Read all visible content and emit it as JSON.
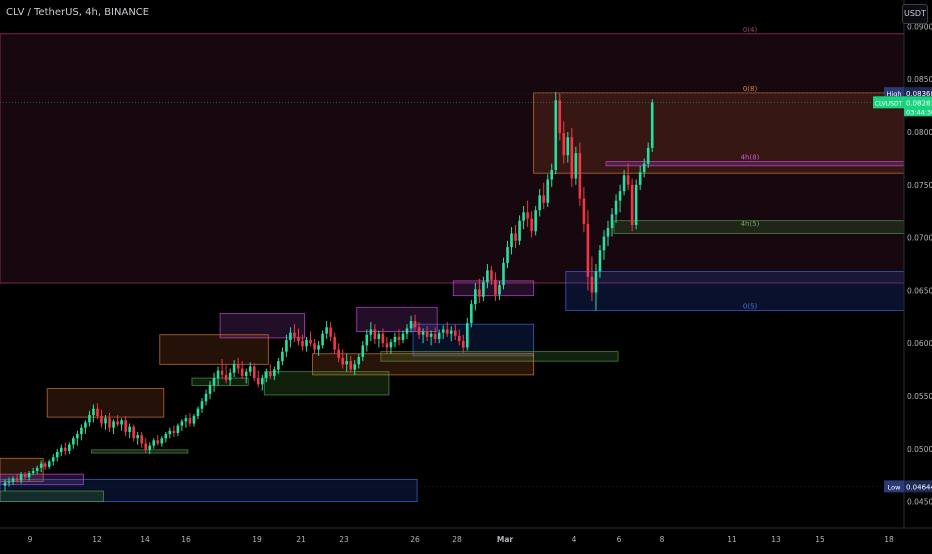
{
  "header": {
    "symbol_title": "CLV / TetherUS, 4h, BINANCE"
  },
  "price_scale": {
    "currency": "USDT"
  },
  "colors": {
    "up": "#26e0a0",
    "down": "#f23645",
    "background": "#000000",
    "last_price": "#19d47e"
  },
  "chart_data": {
    "type": "candlestick",
    "title": "CLV / TetherUS, 4h, BINANCE",
    "x_ticks": [
      "9",
      "12",
      "14",
      "16",
      "19",
      "21",
      "23",
      "26",
      "28",
      "Mar",
      "4",
      "6",
      "8",
      "11",
      "13",
      "15",
      "18"
    ],
    "y_ticks": [
      "0.09000",
      "0.08500",
      "0.08000",
      "0.07500",
      "0.07000",
      "0.06500",
      "0.06000",
      "0.05500",
      "0.05000",
      "0.04500"
    ],
    "ylim": [
      0.0425,
      0.0925
    ],
    "high": {
      "label": "High",
      "value": "0.08368"
    },
    "low": {
      "label": "Low",
      "value": "0.04644"
    },
    "last_price": {
      "symbol": "CLVUSDT",
      "value": "0.08281",
      "countdown": "03:44:30"
    },
    "level_labels": [
      {
        "text": "0(4)",
        "price": 0.0893
      },
      {
        "text": "0(8)",
        "price": 0.0837
      },
      {
        "text": "4h(8)",
        "price": 0.0772
      },
      {
        "text": "4h(5)",
        "price": 0.0709
      },
      {
        "text": "0(5)",
        "price": 0.0631
      }
    ],
    "candles": [
      [
        0.0465,
        0.0471,
        0.046,
        0.0468
      ],
      [
        0.0468,
        0.0473,
        0.0464,
        0.0469
      ],
      [
        0.0469,
        0.0474,
        0.0466,
        0.0472
      ],
      [
        0.0472,
        0.0476,
        0.0468,
        0.047
      ],
      [
        0.047,
        0.0478,
        0.0467,
        0.0476
      ],
      [
        0.0476,
        0.0478,
        0.0471,
        0.0473
      ],
      [
        0.0473,
        0.0479,
        0.047,
        0.0477
      ],
      [
        0.0477,
        0.0482,
        0.0475,
        0.0479
      ],
      [
        0.0479,
        0.0484,
        0.0476,
        0.0482
      ],
      [
        0.0482,
        0.0489,
        0.0478,
        0.0486
      ],
      [
        0.0486,
        0.0488,
        0.048,
        0.0483
      ],
      [
        0.0483,
        0.049,
        0.0481,
        0.0488
      ],
      [
        0.0488,
        0.0495,
        0.0484,
        0.0492
      ],
      [
        0.0492,
        0.05,
        0.0488,
        0.0497
      ],
      [
        0.0497,
        0.0504,
        0.0493,
        0.0501
      ],
      [
        0.0501,
        0.0506,
        0.0494,
        0.0498
      ],
      [
        0.0498,
        0.0506,
        0.0495,
        0.0504
      ],
      [
        0.0504,
        0.0512,
        0.05,
        0.051
      ],
      [
        0.051,
        0.0517,
        0.0503,
        0.0514
      ],
      [
        0.0514,
        0.0523,
        0.0508,
        0.052
      ],
      [
        0.052,
        0.0527,
        0.0514,
        0.0525
      ],
      [
        0.0525,
        0.0536,
        0.0521,
        0.0532
      ],
      [
        0.0532,
        0.0542,
        0.0525,
        0.0538
      ],
      [
        0.0538,
        0.0543,
        0.0528,
        0.0531
      ],
      [
        0.0531,
        0.0537,
        0.052,
        0.0524
      ],
      [
        0.0524,
        0.0532,
        0.0518,
        0.0529
      ],
      [
        0.0529,
        0.0534,
        0.0516,
        0.052
      ],
      [
        0.052,
        0.0528,
        0.0514,
        0.0526
      ],
      [
        0.0526,
        0.0532,
        0.0521,
        0.0523
      ],
      [
        0.0523,
        0.0529,
        0.0517,
        0.0527
      ],
      [
        0.0527,
        0.0531,
        0.0512,
        0.0516
      ],
      [
        0.0516,
        0.0524,
        0.051,
        0.0521
      ],
      [
        0.0521,
        0.0523,
        0.0507,
        0.051
      ],
      [
        0.051,
        0.0516,
        0.0504,
        0.0513
      ],
      [
        0.0513,
        0.0516,
        0.0501,
        0.0505
      ],
      [
        0.0505,
        0.051,
        0.0496,
        0.0499
      ],
      [
        0.0499,
        0.0506,
        0.0495,
        0.0503
      ],
      [
        0.0503,
        0.051,
        0.05,
        0.0508
      ],
      [
        0.0508,
        0.0513,
        0.0503,
        0.0505
      ],
      [
        0.0505,
        0.0512,
        0.0502,
        0.051
      ],
      [
        0.051,
        0.0516,
        0.0506,
        0.0514
      ],
      [
        0.0514,
        0.052,
        0.051,
        0.0517
      ],
      [
        0.0517,
        0.0522,
        0.0511,
        0.0515
      ],
      [
        0.0515,
        0.0524,
        0.0512,
        0.0522
      ],
      [
        0.0522,
        0.0528,
        0.0517,
        0.0526
      ],
      [
        0.0526,
        0.0532,
        0.052,
        0.0529
      ],
      [
        0.0529,
        0.0534,
        0.0521,
        0.0524
      ],
      [
        0.0524,
        0.0533,
        0.0521,
        0.0531
      ],
      [
        0.0531,
        0.054,
        0.0528,
        0.0538
      ],
      [
        0.0538,
        0.0548,
        0.0534,
        0.0545
      ],
      [
        0.0545,
        0.0556,
        0.0541,
        0.0552
      ],
      [
        0.0552,
        0.0564,
        0.0547,
        0.056
      ],
      [
        0.056,
        0.0572,
        0.0554,
        0.0567
      ],
      [
        0.0567,
        0.0578,
        0.056,
        0.0574
      ],
      [
        0.0574,
        0.0585,
        0.0566,
        0.057
      ],
      [
        0.057,
        0.0579,
        0.0562,
        0.0565
      ],
      [
        0.0565,
        0.0576,
        0.056,
        0.0572
      ],
      [
        0.0572,
        0.0584,
        0.0568,
        0.058
      ],
      [
        0.058,
        0.0586,
        0.0571,
        0.0576
      ],
      [
        0.0576,
        0.0583,
        0.0566,
        0.0569
      ],
      [
        0.0569,
        0.0576,
        0.0562,
        0.0573
      ],
      [
        0.0573,
        0.0582,
        0.0569,
        0.0578
      ],
      [
        0.0578,
        0.0581,
        0.0564,
        0.0567
      ],
      [
        0.0567,
        0.0574,
        0.0558,
        0.0561
      ],
      [
        0.0561,
        0.057,
        0.0555,
        0.0567
      ],
      [
        0.0567,
        0.0576,
        0.0563,
        0.0573
      ],
      [
        0.0573,
        0.058,
        0.0566,
        0.0569
      ],
      [
        0.0569,
        0.0578,
        0.0565,
        0.0575
      ],
      [
        0.0575,
        0.0586,
        0.0571,
        0.0583
      ],
      [
        0.0583,
        0.0596,
        0.0579,
        0.0592
      ],
      [
        0.0592,
        0.0608,
        0.0587,
        0.0603
      ],
      [
        0.0603,
        0.0615,
        0.0596,
        0.061
      ],
      [
        0.061,
        0.0618,
        0.0601,
        0.0606
      ],
      [
        0.0606,
        0.0614,
        0.0598,
        0.0602
      ],
      [
        0.0602,
        0.0608,
        0.0593,
        0.0597
      ],
      [
        0.0597,
        0.0606,
        0.0592,
        0.0603
      ],
      [
        0.0603,
        0.0611,
        0.0597,
        0.06
      ],
      [
        0.06,
        0.0604,
        0.059,
        0.0594
      ],
      [
        0.0594,
        0.0602,
        0.0588,
        0.0598
      ],
      [
        0.0598,
        0.0612,
        0.0595,
        0.0609
      ],
      [
        0.0609,
        0.0621,
        0.0604,
        0.0615
      ],
      [
        0.0615,
        0.062,
        0.0602,
        0.0606
      ],
      [
        0.0606,
        0.061,
        0.059,
        0.0594
      ],
      [
        0.0594,
        0.06,
        0.0582,
        0.0586
      ],
      [
        0.0586,
        0.0594,
        0.0576,
        0.058
      ],
      [
        0.058,
        0.059,
        0.0573,
        0.0583
      ],
      [
        0.0583,
        0.0588,
        0.0572,
        0.0575
      ],
      [
        0.0575,
        0.0584,
        0.057,
        0.058
      ],
      [
        0.058,
        0.059,
        0.0576,
        0.0587
      ],
      [
        0.0587,
        0.0602,
        0.0583,
        0.0598
      ],
      [
        0.0598,
        0.0613,
        0.0592,
        0.0608
      ],
      [
        0.0608,
        0.062,
        0.0602,
        0.0613
      ],
      [
        0.0613,
        0.0618,
        0.0599,
        0.0604
      ],
      [
        0.0604,
        0.0612,
        0.0596,
        0.0609
      ],
      [
        0.0609,
        0.0614,
        0.0596,
        0.06
      ],
      [
        0.06,
        0.0606,
        0.059,
        0.0596
      ],
      [
        0.0596,
        0.0604,
        0.059,
        0.0601
      ],
      [
        0.0601,
        0.061,
        0.0596,
        0.0606
      ],
      [
        0.0606,
        0.0613,
        0.0598,
        0.0603
      ],
      [
        0.0603,
        0.0612,
        0.06,
        0.0609
      ],
      [
        0.0609,
        0.0618,
        0.0604,
        0.0614
      ],
      [
        0.0614,
        0.0626,
        0.061,
        0.0621
      ],
      [
        0.0621,
        0.0627,
        0.0611,
        0.0615
      ],
      [
        0.0615,
        0.062,
        0.0604,
        0.0608
      ],
      [
        0.0608,
        0.0614,
        0.06,
        0.0611
      ],
      [
        0.0611,
        0.0616,
        0.0602,
        0.0606
      ],
      [
        0.0606,
        0.0612,
        0.0598,
        0.0609
      ],
      [
        0.0609,
        0.0615,
        0.06,
        0.0604
      ],
      [
        0.0604,
        0.0613,
        0.06,
        0.061
      ],
      [
        0.061,
        0.0617,
        0.0604,
        0.0613
      ],
      [
        0.0613,
        0.062,
        0.0606,
        0.0609
      ],
      [
        0.0609,
        0.0616,
        0.0602,
        0.0612
      ],
      [
        0.0612,
        0.0618,
        0.0603,
        0.0607
      ],
      [
        0.0607,
        0.0613,
        0.0598,
        0.0602
      ],
      [
        0.0602,
        0.0608,
        0.0591,
        0.0596
      ],
      [
        0.0596,
        0.0624,
        0.0593,
        0.0619
      ],
      [
        0.0619,
        0.0641,
        0.0615,
        0.0637
      ],
      [
        0.0637,
        0.0657,
        0.0631,
        0.0651
      ],
      [
        0.0651,
        0.0661,
        0.0638,
        0.0644
      ],
      [
        0.0644,
        0.0663,
        0.064,
        0.0658
      ],
      [
        0.0658,
        0.0675,
        0.0652,
        0.0669
      ],
      [
        0.0669,
        0.0673,
        0.0655,
        0.066
      ],
      [
        0.066,
        0.0667,
        0.064,
        0.0646
      ],
      [
        0.0646,
        0.0659,
        0.0641,
        0.0655
      ],
      [
        0.0655,
        0.0681,
        0.0651,
        0.0676
      ],
      [
        0.0676,
        0.0697,
        0.0671,
        0.0691
      ],
      [
        0.0691,
        0.071,
        0.0684,
        0.0704
      ],
      [
        0.0704,
        0.0712,
        0.069,
        0.0697
      ],
      [
        0.0697,
        0.0721,
        0.0693,
        0.0716
      ],
      [
        0.0716,
        0.073,
        0.0708,
        0.0724
      ],
      [
        0.0724,
        0.0735,
        0.071,
        0.0718
      ],
      [
        0.0718,
        0.0725,
        0.07,
        0.0706
      ],
      [
        0.0706,
        0.073,
        0.0702,
        0.0726
      ],
      [
        0.0726,
        0.0746,
        0.072,
        0.074
      ],
      [
        0.074,
        0.0752,
        0.0727,
        0.0733
      ],
      [
        0.0733,
        0.076,
        0.0729,
        0.0755
      ],
      [
        0.0755,
        0.077,
        0.0748,
        0.0764
      ],
      [
        0.0764,
        0.0838,
        0.076,
        0.083
      ],
      [
        0.083,
        0.0837,
        0.0792,
        0.0799
      ],
      [
        0.0799,
        0.081,
        0.077,
        0.0778
      ],
      [
        0.0778,
        0.08,
        0.0771,
        0.0795
      ],
      [
        0.0795,
        0.0804,
        0.0748,
        0.0756
      ],
      [
        0.0756,
        0.0786,
        0.075,
        0.078
      ],
      [
        0.078,
        0.079,
        0.073,
        0.0737
      ],
      [
        0.0737,
        0.0748,
        0.0705,
        0.0713
      ],
      [
        0.0713,
        0.0726,
        0.065,
        0.0663
      ],
      [
        0.0663,
        0.0682,
        0.064,
        0.0648
      ],
      [
        0.0648,
        0.0675,
        0.0631,
        0.0668
      ],
      [
        0.0668,
        0.0693,
        0.0662,
        0.0688
      ],
      [
        0.0688,
        0.0707,
        0.0679,
        0.0701
      ],
      [
        0.0701,
        0.0716,
        0.0692,
        0.0709
      ],
      [
        0.0709,
        0.0728,
        0.0701,
        0.0722
      ],
      [
        0.0722,
        0.0741,
        0.0714,
        0.0735
      ],
      [
        0.0735,
        0.075,
        0.0724,
        0.0744
      ],
      [
        0.0744,
        0.0764,
        0.074,
        0.0759
      ],
      [
        0.0759,
        0.077,
        0.0745,
        0.075
      ],
      [
        0.075,
        0.0756,
        0.0706,
        0.0712
      ],
      [
        0.0712,
        0.0755,
        0.0708,
        0.075
      ],
      [
        0.075,
        0.0768,
        0.0745,
        0.0762
      ],
      [
        0.0762,
        0.0775,
        0.0757,
        0.077
      ],
      [
        0.077,
        0.079,
        0.0766,
        0.0785
      ],
      [
        0.0785,
        0.0831,
        0.0781,
        0.0828
      ]
    ],
    "zones": [
      {
        "price": [
          0.0657,
          0.0893
        ],
        "fill": "#8c2a5e",
        "fillOpacity": 0.16,
        "stroke": "#b0386f",
        "from": 0
      },
      {
        "price": [
          0.0761,
          0.0837
        ],
        "fill": "#c8662a",
        "fillOpacity": 0.18,
        "stroke": "#d97a2c",
        "from": 132
      },
      {
        "price": [
          0.0768,
          0.0772
        ],
        "fill": "#c24bd6",
        "fillOpacity": 0.2,
        "stroke": "#c24bd6",
        "from": 150
      },
      {
        "price": [
          0.0704,
          0.0716
        ],
        "fill": "#4a9a3a",
        "fillOpacity": 0.2,
        "stroke": "#4f9c44",
        "from": 152
      },
      {
        "price": [
          0.0631,
          0.0668
        ],
        "fill": "#2a4fc8",
        "fillOpacity": 0.22,
        "stroke": "#3a68e0",
        "from": 140
      },
      {
        "price": [
          0.0645,
          0.0659
        ],
        "fill": "#c24bd6",
        "fillOpacity": 0.18,
        "stroke": "#c24bd6",
        "from": 112,
        "to": 131
      },
      {
        "price": [
          0.0588,
          0.0618
        ],
        "fill": "#2a4fc8",
        "fillOpacity": 0.2,
        "stroke": "#3a68e0",
        "from": 102,
        "to": 131
      },
      {
        "price": [
          0.0583,
          0.0592
        ],
        "fill": "#4a9a3a",
        "fillOpacity": 0.22,
        "stroke": "#4f9c44",
        "from": 94,
        "to": 152
      },
      {
        "price": [
          0.057,
          0.059
        ],
        "fill": "#c8662a",
        "fillOpacity": 0.2,
        "stroke": "#d97a2c",
        "from": 77,
        "to": 131
      },
      {
        "price": [
          0.0611,
          0.0634
        ],
        "fill": "#c24bd6",
        "fillOpacity": 0.18,
        "stroke": "#c24bd6",
        "from": 88,
        "to": 107
      },
      {
        "price": [
          0.0551,
          0.0573
        ],
        "fill": "#4a9a3a",
        "fillOpacity": 0.2,
        "stroke": "#4f9c44",
        "from": 65,
        "to": 95
      },
      {
        "price": [
          0.0605,
          0.0628
        ],
        "fill": "#c24bd6",
        "fillOpacity": 0.18,
        "stroke": "#c24bd6",
        "from": 54,
        "to": 74
      },
      {
        "price": [
          0.058,
          0.0608
        ],
        "fill": "#c8662a",
        "fillOpacity": 0.18,
        "stroke": "#d97a2c",
        "from": 39,
        "to": 65
      },
      {
        "price": [
          0.056,
          0.0567
        ],
        "fill": "#4a9a3a",
        "fillOpacity": 0.2,
        "stroke": "#4f9c44",
        "from": 47,
        "to": 60
      },
      {
        "price": [
          0.053,
          0.0557
        ],
        "fill": "#c8662a",
        "fillOpacity": 0.18,
        "stroke": "#d97a2c",
        "from": 11,
        "to": 39
      },
      {
        "price": [
          0.0496,
          0.0499
        ],
        "fill": "#4a9a3a",
        "fillOpacity": 0.25,
        "stroke": "#4f9c44",
        "from": 22,
        "to": 45
      },
      {
        "price": [
          0.0469,
          0.0491
        ],
        "fill": "#c8662a",
        "fillOpacity": 0.2,
        "stroke": "#d97a2c",
        "from": 0,
        "to": 9
      },
      {
        "price": [
          0.0466,
          0.0476
        ],
        "fill": "#c24bd6",
        "fillOpacity": 0.2,
        "stroke": "#c24bd6",
        "from": 0,
        "to": 19
      },
      {
        "price": [
          0.045,
          0.0471
        ],
        "fill": "#2a4fc8",
        "fillOpacity": 0.2,
        "stroke": "#3a68e0",
        "from": 0,
        "to": 102
      },
      {
        "price": [
          0.045,
          0.046
        ],
        "fill": "#4a9a3a",
        "fillOpacity": 0.2,
        "stroke": "#4f9c44",
        "from": 0,
        "to": 24
      }
    ]
  }
}
